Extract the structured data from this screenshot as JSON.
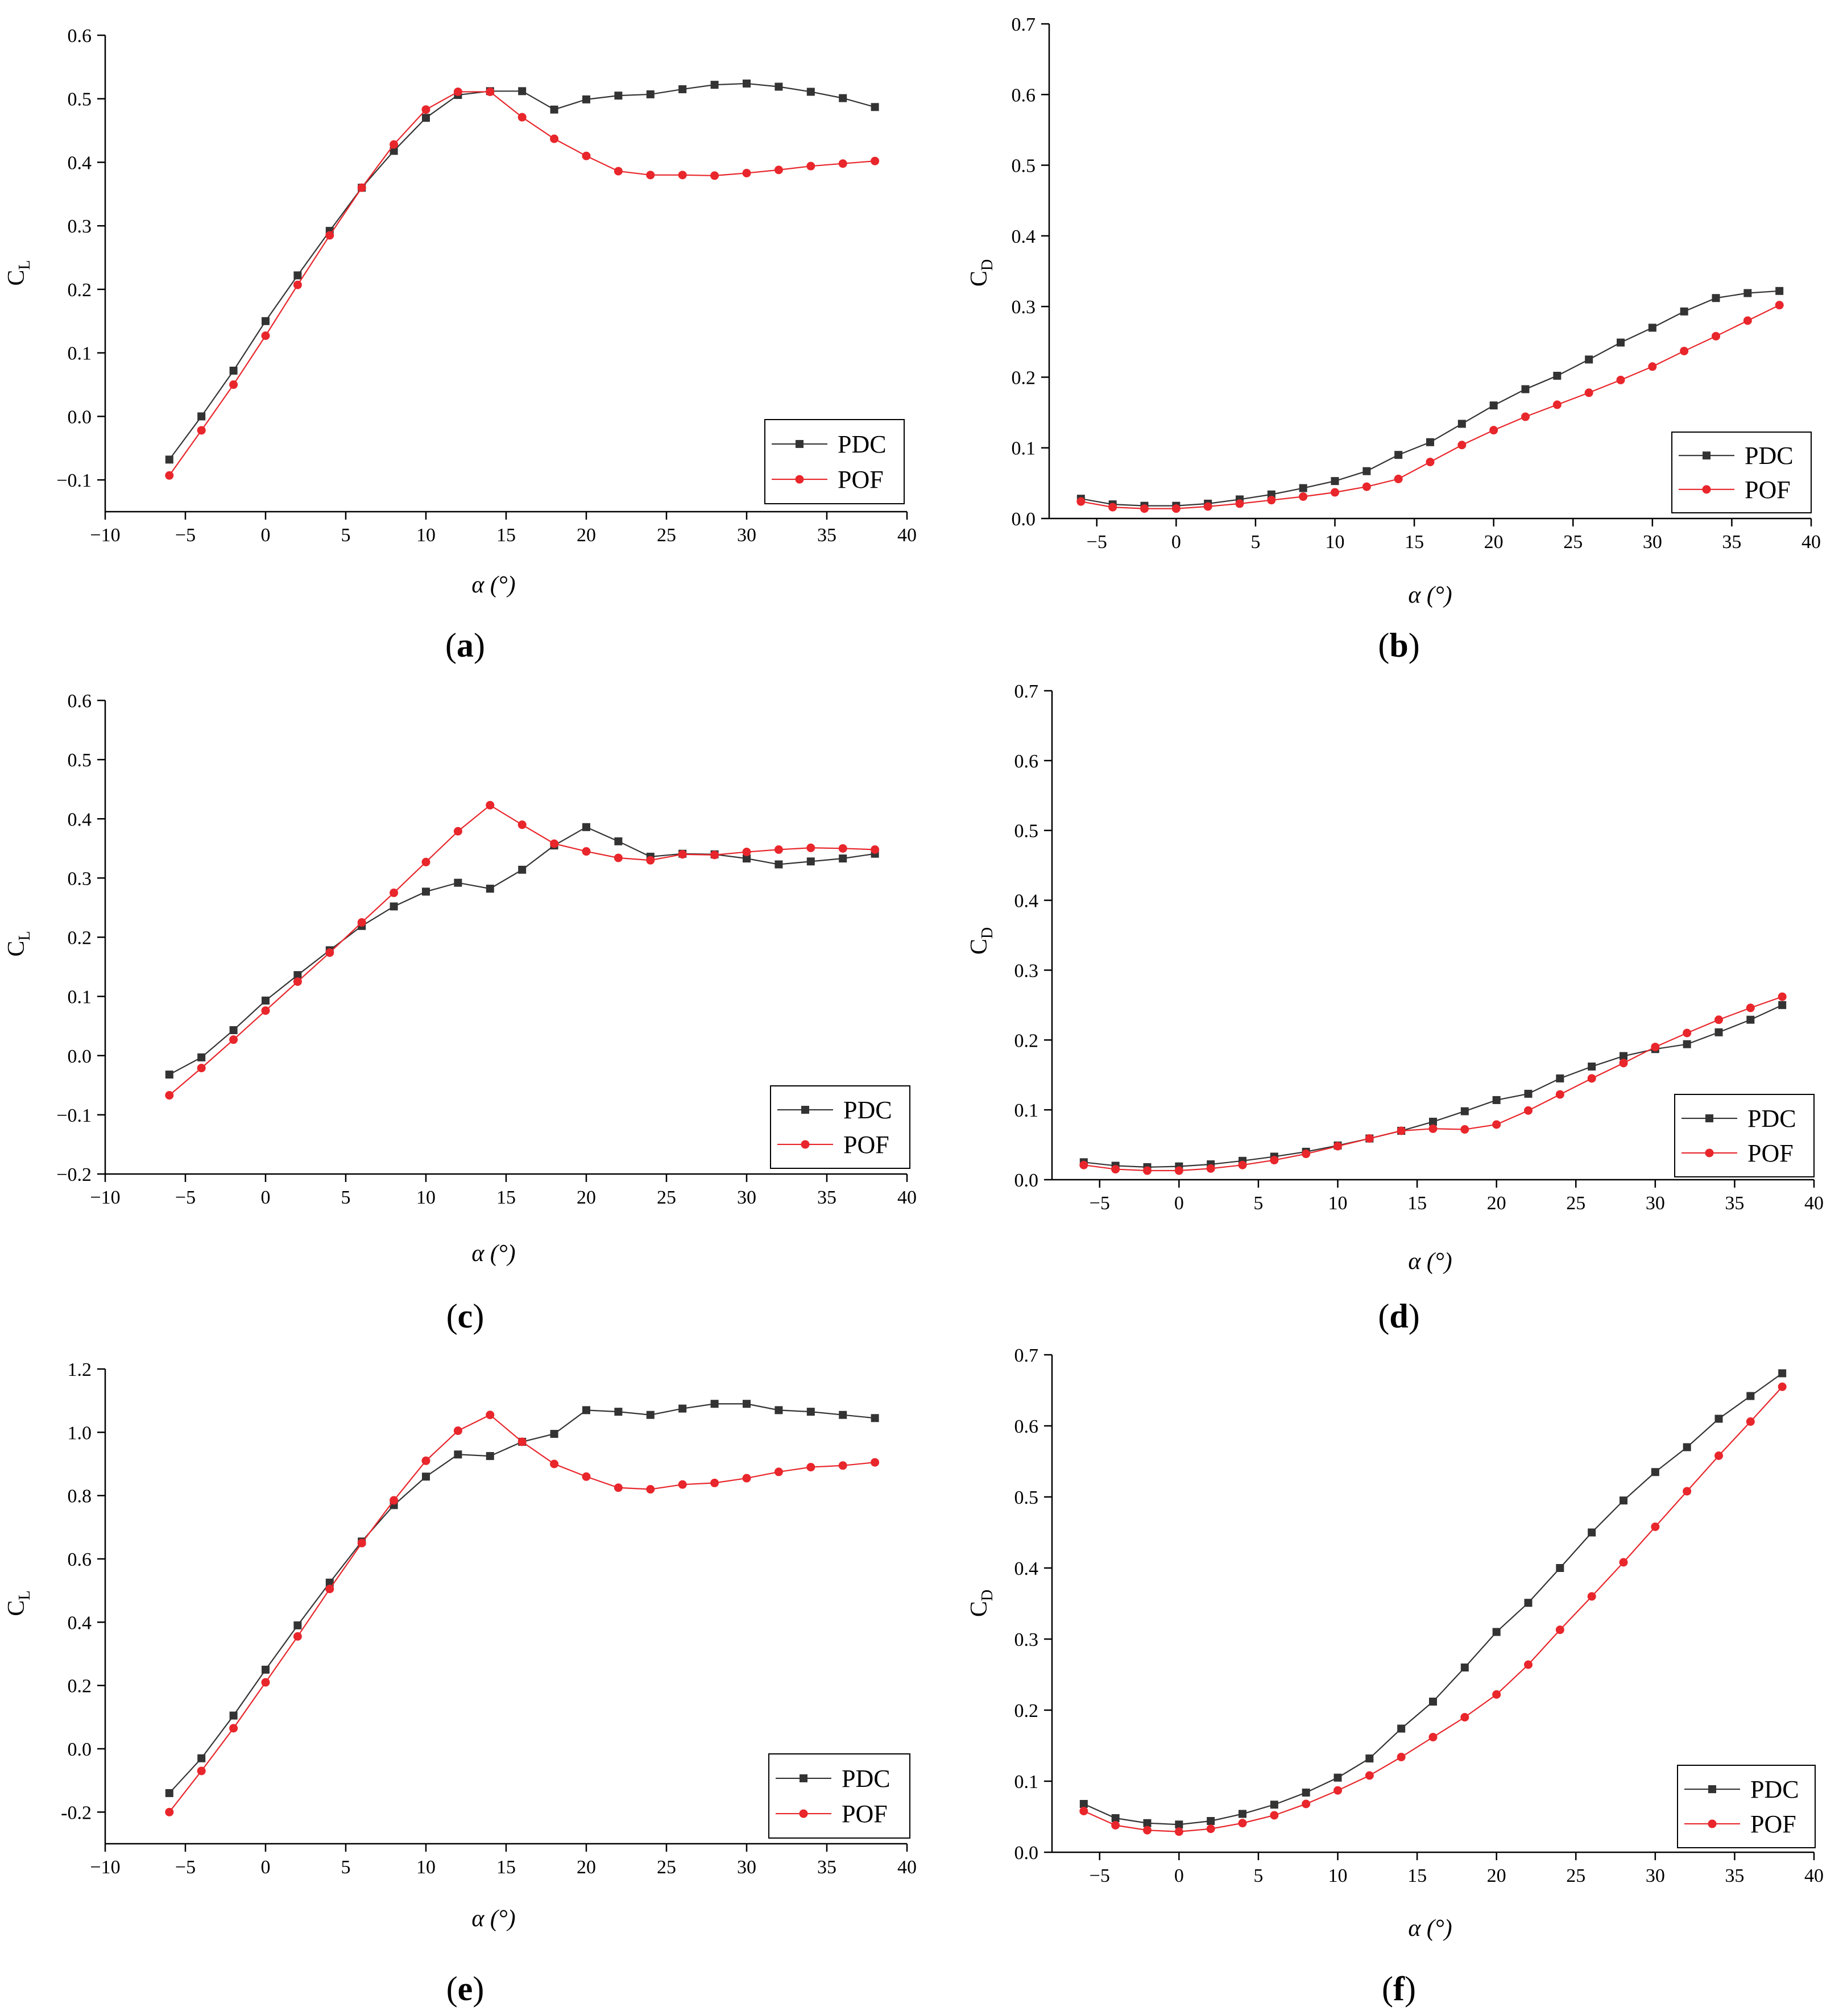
{
  "figure": {
    "panel_labels": [
      "(a)",
      "(b)",
      "(c)",
      "(d)",
      "(e)",
      "(f)"
    ]
  },
  "colors": {
    "PDC": "#333333",
    "POF": "#e8262b",
    "axis": "#000000"
  },
  "chart_data": [
    {
      "id": "a",
      "type": "line",
      "panel_label": "(a)",
      "ylabel": "C",
      "ylabel_sub": "L",
      "xlabel": "α (°)",
      "xlim": [
        -10,
        40
      ],
      "ylim": [
        -0.15,
        0.6
      ],
      "xticks": [
        -10,
        -5,
        0,
        5,
        10,
        15,
        20,
        25,
        30,
        35,
        40
      ],
      "xtick_labels": [
        "−10",
        "−5",
        "0",
        "5",
        "10",
        "15",
        "20",
        "25",
        "30",
        "35",
        "40"
      ],
      "yticks": [
        -0.1,
        0.0,
        0.1,
        0.2,
        0.3,
        0.4,
        0.5,
        0.6
      ],
      "ytick_labels": [
        "−0.1",
        "0.0",
        "0.1",
        "0.2",
        "0.3",
        "0.4",
        "0.5",
        "0.6"
      ],
      "legend": [
        "PDC",
        "POF"
      ],
      "legend_position": "bottom-right",
      "x": [
        -6,
        -4,
        -2,
        0,
        2,
        4,
        6,
        8,
        10,
        12,
        14,
        16,
        18,
        20,
        22,
        24,
        26,
        28,
        30,
        32,
        34,
        36,
        38
      ],
      "series": [
        {
          "name": "PDC",
          "marker": "square",
          "values": [
            -0.068,
            0.0,
            0.072,
            0.15,
            0.222,
            0.292,
            0.36,
            0.418,
            0.47,
            0.506,
            0.512,
            0.512,
            0.483,
            0.499,
            0.505,
            0.507,
            0.515,
            0.522,
            0.524,
            0.519,
            0.511,
            0.501,
            0.487
          ]
        },
        {
          "name": "POF",
          "marker": "circle",
          "values": [
            -0.093,
            -0.022,
            0.05,
            0.127,
            0.207,
            0.285,
            0.36,
            0.428,
            0.483,
            0.511,
            0.511,
            0.471,
            0.437,
            0.41,
            0.386,
            0.38,
            0.38,
            0.379,
            0.383,
            0.388,
            0.394,
            0.398,
            0.402
          ]
        }
      ]
    },
    {
      "id": "b",
      "type": "line",
      "panel_label": "(b)",
      "ylabel": "C",
      "ylabel_sub": "D",
      "xlabel": "α (°)",
      "xlim": [
        -8,
        40
      ],
      "ylim": [
        0,
        0.7
      ],
      "xticks": [
        -5,
        0,
        5,
        10,
        15,
        20,
        25,
        30,
        35,
        40
      ],
      "xtick_labels": [
        "−5",
        "0",
        "5",
        "10",
        "15",
        "20",
        "25",
        "30",
        "35",
        "40"
      ],
      "yticks": [
        0.0,
        0.1,
        0.2,
        0.3,
        0.4,
        0.5,
        0.6,
        0.7
      ],
      "ytick_labels": [
        "0.0",
        "0.1",
        "0.2",
        "0.3",
        "0.4",
        "0.5",
        "0.6",
        "0.7"
      ],
      "legend": [
        "PDC",
        "POF"
      ],
      "legend_position": "bottom-right",
      "x": [
        -6,
        -4,
        -2,
        0,
        2,
        4,
        6,
        8,
        10,
        12,
        14,
        16,
        18,
        20,
        22,
        24,
        26,
        28,
        30,
        32,
        34,
        36,
        38
      ],
      "series": [
        {
          "name": "PDC",
          "marker": "square",
          "values": [
            0.028,
            0.02,
            0.018,
            0.018,
            0.021,
            0.027,
            0.034,
            0.043,
            0.053,
            0.067,
            0.09,
            0.108,
            0.134,
            0.16,
            0.183,
            0.202,
            0.225,
            0.249,
            0.27,
            0.293,
            0.312,
            0.319,
            0.322
          ]
        },
        {
          "name": "POF",
          "marker": "circle",
          "values": [
            0.024,
            0.016,
            0.014,
            0.014,
            0.017,
            0.021,
            0.026,
            0.031,
            0.037,
            0.045,
            0.056,
            0.08,
            0.104,
            0.125,
            0.144,
            0.161,
            0.178,
            0.196,
            0.215,
            0.237,
            0.258,
            0.28,
            0.302
          ]
        }
      ]
    },
    {
      "id": "c",
      "type": "line",
      "panel_label": "(c)",
      "ylabel": "C",
      "ylabel_sub": "L",
      "xlabel": "α (°)",
      "xlim": [
        -10,
        40
      ],
      "ylim": [
        -0.2,
        0.6
      ],
      "xticks": [
        -10,
        -5,
        0,
        5,
        10,
        15,
        20,
        25,
        30,
        35,
        40
      ],
      "xtick_labels": [
        "−10",
        "−5",
        "0",
        "5",
        "10",
        "15",
        "20",
        "25",
        "30",
        "35",
        "40"
      ],
      "yticks": [
        -0.2,
        -0.1,
        0.0,
        0.1,
        0.2,
        0.3,
        0.4,
        0.5,
        0.6
      ],
      "ytick_labels": [
        "−0.2",
        "−0.1",
        "0.0",
        "0.1",
        "0.2",
        "0.3",
        "0.4",
        "0.5",
        "0.6"
      ],
      "legend": [
        "PDC",
        "POF"
      ],
      "legend_position": "bottom-right",
      "x": [
        -6,
        -4,
        -2,
        0,
        2,
        4,
        6,
        8,
        10,
        12,
        14,
        16,
        18,
        20,
        22,
        24,
        26,
        28,
        30,
        32,
        34,
        36,
        38
      ],
      "series": [
        {
          "name": "PDC",
          "marker": "square",
          "values": [
            -0.032,
            -0.003,
            0.043,
            0.093,
            0.136,
            0.178,
            0.219,
            0.252,
            0.277,
            0.292,
            0.282,
            0.314,
            0.355,
            0.386,
            0.362,
            0.336,
            0.341,
            0.34,
            0.333,
            0.323,
            0.328,
            0.333,
            0.341
          ]
        },
        {
          "name": "POF",
          "marker": "circle",
          "values": [
            -0.067,
            -0.021,
            0.027,
            0.076,
            0.125,
            0.174,
            0.225,
            0.275,
            0.327,
            0.379,
            0.423,
            0.39,
            0.358,
            0.345,
            0.334,
            0.33,
            0.34,
            0.339,
            0.344,
            0.348,
            0.351,
            0.35,
            0.348
          ]
        }
      ]
    },
    {
      "id": "d",
      "type": "line",
      "panel_label": "(d)",
      "ylabel": "C",
      "ylabel_sub": "D",
      "xlabel": "α (°)",
      "xlim": [
        -8,
        40
      ],
      "ylim": [
        0,
        0.7
      ],
      "xticks": [
        -5,
        0,
        5,
        10,
        15,
        20,
        25,
        30,
        35,
        40
      ],
      "xtick_labels": [
        "−5",
        "0",
        "5",
        "10",
        "15",
        "20",
        "25",
        "30",
        "35",
        "40"
      ],
      "yticks": [
        0.0,
        0.1,
        0.2,
        0.3,
        0.4,
        0.5,
        0.6,
        0.7
      ],
      "ytick_labels": [
        "0.0",
        "0.1",
        "0.2",
        "0.3",
        "0.4",
        "0.5",
        "0.6",
        "0.7"
      ],
      "legend": [
        "PDC",
        "POF"
      ],
      "legend_position": "bottom-right",
      "x": [
        -6,
        -4,
        -2,
        0,
        2,
        4,
        6,
        8,
        10,
        12,
        14,
        16,
        18,
        20,
        22,
        24,
        26,
        28,
        30,
        32,
        34,
        36,
        38
      ],
      "series": [
        {
          "name": "PDC",
          "marker": "square",
          "values": [
            0.025,
            0.02,
            0.018,
            0.019,
            0.022,
            0.027,
            0.033,
            0.04,
            0.049,
            0.059,
            0.07,
            0.083,
            0.098,
            0.114,
            0.123,
            0.145,
            0.162,
            0.177,
            0.187,
            0.194,
            0.211,
            0.229,
            0.25
          ]
        },
        {
          "name": "POF",
          "marker": "circle",
          "values": [
            0.021,
            0.015,
            0.013,
            0.013,
            0.016,
            0.021,
            0.028,
            0.037,
            0.048,
            0.059,
            0.07,
            0.073,
            0.072,
            0.079,
            0.099,
            0.122,
            0.145,
            0.167,
            0.19,
            0.21,
            0.229,
            0.246,
            0.262
          ]
        }
      ]
    },
    {
      "id": "e",
      "type": "line",
      "panel_label": "(e)",
      "ylabel": "C",
      "ylabel_sub": "L",
      "xlabel": "α (°)",
      "xlim": [
        -10,
        40
      ],
      "ylim": [
        -0.3,
        1.2
      ],
      "xticks": [
        -10,
        -5,
        0,
        5,
        10,
        15,
        20,
        25,
        30,
        35,
        40
      ],
      "xtick_labels": [
        "−10",
        "−5",
        "0",
        "5",
        "10",
        "15",
        "20",
        "25",
        "30",
        "35",
        "40"
      ],
      "yticks": [
        -0.2,
        0.0,
        0.2,
        0.4,
        0.6,
        0.8,
        1.0,
        1.2
      ],
      "ytick_labels": [
        "-0.2",
        "0.0",
        "0.2",
        "0.4",
        "0.6",
        "0.8",
        "1.0",
        "1.2"
      ],
      "legend": [
        "PDC",
        "POF"
      ],
      "legend_position": "bottom-right",
      "x": [
        -6,
        -4,
        -2,
        0,
        2,
        4,
        6,
        8,
        10,
        12,
        14,
        16,
        18,
        20,
        22,
        24,
        26,
        28,
        30,
        32,
        34,
        36,
        38
      ],
      "series": [
        {
          "name": "PDC",
          "marker": "square",
          "values": [
            -0.14,
            -0.03,
            0.105,
            0.25,
            0.39,
            0.525,
            0.655,
            0.77,
            0.86,
            0.93,
            0.925,
            0.97,
            0.995,
            1.07,
            1.065,
            1.055,
            1.075,
            1.09,
            1.09,
            1.07,
            1.065,
            1.055,
            1.045
          ]
        },
        {
          "name": "POF",
          "marker": "circle",
          "values": [
            -0.2,
            -0.07,
            0.065,
            0.21,
            0.355,
            0.505,
            0.65,
            0.785,
            0.91,
            1.005,
            1.055,
            0.97,
            0.9,
            0.86,
            0.825,
            0.82,
            0.835,
            0.84,
            0.855,
            0.875,
            0.89,
            0.895,
            0.905
          ]
        }
      ]
    },
    {
      "id": "f",
      "type": "line",
      "panel_label": "(f)",
      "ylabel": "C",
      "ylabel_sub": "D",
      "xlabel": "α (°)",
      "xlim": [
        -8,
        40
      ],
      "ylim": [
        0,
        0.7
      ],
      "xticks": [
        -5,
        0,
        5,
        10,
        15,
        20,
        25,
        30,
        35,
        40
      ],
      "xtick_labels": [
        "−5",
        "0",
        "5",
        "10",
        "15",
        "20",
        "25",
        "30",
        "35",
        "40"
      ],
      "yticks": [
        0.0,
        0.1,
        0.2,
        0.3,
        0.4,
        0.5,
        0.6,
        0.7
      ],
      "ytick_labels": [
        "0.0",
        "0.1",
        "0.2",
        "0.3",
        "0.4",
        "0.5",
        "0.6",
        "0.7"
      ],
      "legend": [
        "PDC",
        "POF"
      ],
      "legend_position": "bottom-right",
      "x": [
        -6,
        -4,
        -2,
        0,
        2,
        4,
        6,
        8,
        10,
        12,
        14,
        16,
        18,
        20,
        22,
        24,
        26,
        28,
        30,
        32,
        34,
        36,
        38
      ],
      "series": [
        {
          "name": "PDC",
          "marker": "square",
          "values": [
            0.068,
            0.048,
            0.041,
            0.039,
            0.044,
            0.054,
            0.067,
            0.084,
            0.105,
            0.132,
            0.174,
            0.212,
            0.26,
            0.31,
            0.351,
            0.4,
            0.45,
            0.495,
            0.535,
            0.57,
            0.61,
            0.642,
            0.674
          ]
        },
        {
          "name": "POF",
          "marker": "circle",
          "values": [
            0.058,
            0.038,
            0.031,
            0.029,
            0.033,
            0.041,
            0.052,
            0.068,
            0.087,
            0.108,
            0.134,
            0.162,
            0.19,
            0.222,
            0.264,
            0.313,
            0.36,
            0.408,
            0.458,
            0.508,
            0.558,
            0.606,
            0.655
          ]
        }
      ]
    }
  ]
}
